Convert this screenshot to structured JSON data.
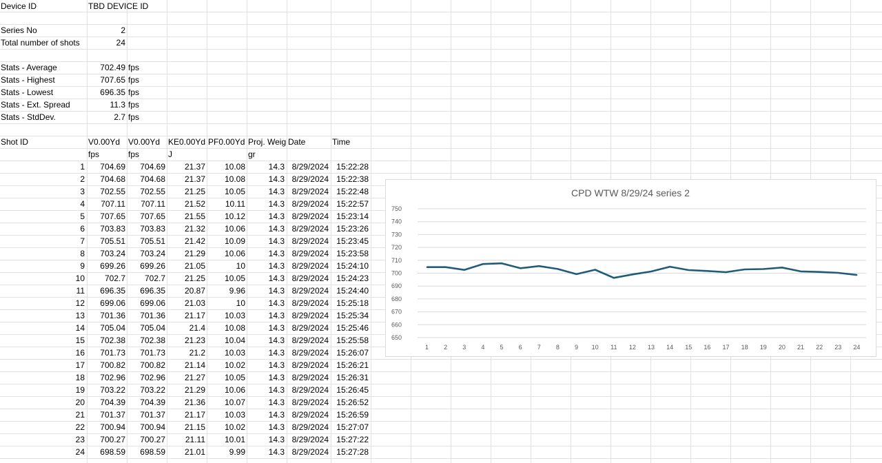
{
  "info": {
    "device_id_label": "Device ID",
    "device_id_value": "TBD DEVICE ID",
    "series_no_label": "Series No",
    "series_no_value": "2",
    "total_shots_label": "Total number of shots",
    "total_shots_value": "24"
  },
  "stats": [
    {
      "label": "Stats - Average",
      "value": "702.49",
      "unit": "fps"
    },
    {
      "label": "Stats - Highest",
      "value": "707.65",
      "unit": "fps"
    },
    {
      "label": "Stats - Lowest",
      "value": "696.35",
      "unit": "fps"
    },
    {
      "label": "Stats - Ext. Spread",
      "value": "11.3",
      "unit": "fps"
    },
    {
      "label": "Stats - StdDev.",
      "value": "2.7",
      "unit": "fps"
    }
  ],
  "table": {
    "headers": [
      "Shot ID",
      "V0.00Yd",
      "V0.00Yd",
      "KE0.00Yd",
      "PF0.00Yd",
      "Proj. Weight",
      "Date",
      "Time"
    ],
    "units": [
      "",
      "fps",
      "fps",
      "J",
      "",
      "gr",
      "",
      ""
    ],
    "rows": [
      [
        "1",
        "704.69",
        "704.69",
        "21.37",
        "10.08",
        "14.3",
        "8/29/2024",
        "15:22:28"
      ],
      [
        "2",
        "704.68",
        "704.68",
        "21.37",
        "10.08",
        "14.3",
        "8/29/2024",
        "15:22:38"
      ],
      [
        "3",
        "702.55",
        "702.55",
        "21.25",
        "10.05",
        "14.3",
        "8/29/2024",
        "15:22:48"
      ],
      [
        "4",
        "707.11",
        "707.11",
        "21.52",
        "10.11",
        "14.3",
        "8/29/2024",
        "15:22:57"
      ],
      [
        "5",
        "707.65",
        "707.65",
        "21.55",
        "10.12",
        "14.3",
        "8/29/2024",
        "15:23:14"
      ],
      [
        "6",
        "703.83",
        "703.83",
        "21.32",
        "10.06",
        "14.3",
        "8/29/2024",
        "15:23:26"
      ],
      [
        "7",
        "705.51",
        "705.51",
        "21.42",
        "10.09",
        "14.3",
        "8/29/2024",
        "15:23:45"
      ],
      [
        "8",
        "703.24",
        "703.24",
        "21.29",
        "10.06",
        "14.3",
        "8/29/2024",
        "15:23:58"
      ],
      [
        "9",
        "699.26",
        "699.26",
        "21.05",
        "10",
        "14.3",
        "8/29/2024",
        "15:24:10"
      ],
      [
        "10",
        "702.7",
        "702.7",
        "21.25",
        "10.05",
        "14.3",
        "8/29/2024",
        "15:24:23"
      ],
      [
        "11",
        "696.35",
        "696.35",
        "20.87",
        "9.96",
        "14.3",
        "8/29/2024",
        "15:24:40"
      ],
      [
        "12",
        "699.06",
        "699.06",
        "21.03",
        "10",
        "14.3",
        "8/29/2024",
        "15:25:18"
      ],
      [
        "13",
        "701.36",
        "701.36",
        "21.17",
        "10.03",
        "14.3",
        "8/29/2024",
        "15:25:34"
      ],
      [
        "14",
        "705.04",
        "705.04",
        "21.4",
        "10.08",
        "14.3",
        "8/29/2024",
        "15:25:46"
      ],
      [
        "15",
        "702.38",
        "702.38",
        "21.23",
        "10.04",
        "14.3",
        "8/29/2024",
        "15:25:58"
      ],
      [
        "16",
        "701.73",
        "701.73",
        "21.2",
        "10.03",
        "14.3",
        "8/29/2024",
        "15:26:07"
      ],
      [
        "17",
        "700.82",
        "700.82",
        "21.14",
        "10.02",
        "14.3",
        "8/29/2024",
        "15:26:21"
      ],
      [
        "18",
        "702.96",
        "702.96",
        "21.27",
        "10.05",
        "14.3",
        "8/29/2024",
        "15:26:31"
      ],
      [
        "19",
        "703.22",
        "703.22",
        "21.29",
        "10.06",
        "14.3",
        "8/29/2024",
        "15:26:45"
      ],
      [
        "20",
        "704.39",
        "704.39",
        "21.36",
        "10.07",
        "14.3",
        "8/29/2024",
        "15:26:52"
      ],
      [
        "21",
        "701.37",
        "701.37",
        "21.17",
        "10.03",
        "14.3",
        "8/29/2024",
        "15:26:59"
      ],
      [
        "22",
        "700.94",
        "700.94",
        "21.15",
        "10.02",
        "14.3",
        "8/29/2024",
        "15:27:07"
      ],
      [
        "23",
        "700.27",
        "700.27",
        "21.11",
        "10.01",
        "14.3",
        "8/29/2024",
        "15:27:22"
      ],
      [
        "24",
        "698.59",
        "698.59",
        "21.01",
        "9.99",
        "14.3",
        "8/29/2024",
        "15:27:28"
      ]
    ]
  },
  "colors": {
    "gridline": "#e1e1e1",
    "series_line": "#1f5c7a",
    "chart_gridline": "#d9d9d9"
  },
  "chart_data": {
    "type": "line",
    "title": "CPD WTW 8/29/24 series 2",
    "categories": [
      "1",
      "2",
      "3",
      "4",
      "5",
      "6",
      "7",
      "8",
      "9",
      "10",
      "11",
      "12",
      "13",
      "14",
      "15",
      "16",
      "17",
      "18",
      "19",
      "20",
      "21",
      "22",
      "23",
      "24"
    ],
    "series": [
      {
        "values": [
          704.69,
          704.68,
          702.55,
          707.11,
          707.65,
          703.83,
          705.51,
          703.24,
          699.26,
          702.7,
          696.35,
          699.06,
          701.36,
          705.04,
          702.38,
          701.73,
          700.82,
          702.96,
          703.22,
          704.39,
          701.37,
          700.94,
          700.27,
          698.59
        ]
      }
    ],
    "ylim": [
      650,
      750
    ],
    "yticks": [
      650,
      660,
      670,
      680,
      690,
      700,
      710,
      720,
      730,
      740,
      750
    ],
    "grid": true,
    "legend": "none"
  }
}
